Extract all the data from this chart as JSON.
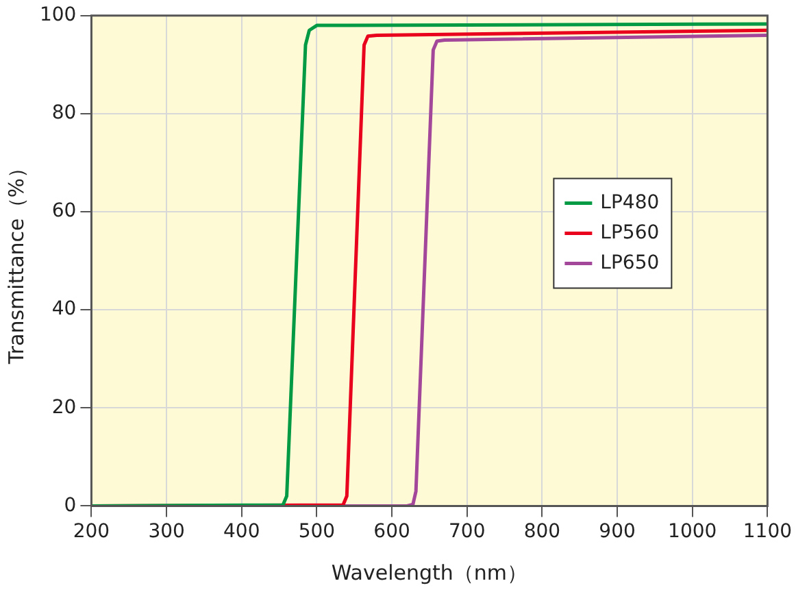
{
  "chart_data": {
    "type": "line",
    "xlabel": "Wavelength（nm）",
    "ylabel": "Transmittance（%）",
    "xlim": [
      200,
      1100
    ],
    "xticks": [
      200,
      300,
      400,
      500,
      600,
      700,
      800,
      900,
      1000,
      1100
    ],
    "ylim": [
      0,
      100
    ],
    "yticks": [
      0,
      20,
      40,
      60,
      80,
      100
    ],
    "grid": true,
    "legend": "right",
    "marker": "none",
    "line_style": "solid",
    "series": [
      {
        "name": "LP480",
        "color": "#009a44",
        "x": [
          200,
          455,
          460,
          485,
          490,
          500,
          1100
        ],
        "values": [
          0,
          0.2,
          2,
          94,
          97,
          98,
          98.3
        ]
      },
      {
        "name": "LP560",
        "color": "#e8001c",
        "x": [
          200,
          535,
          540,
          563,
          568,
          580,
          1100
        ],
        "values": [
          0,
          0.2,
          2,
          94,
          95.8,
          96,
          97
        ]
      },
      {
        "name": "LP650",
        "color": "#a3479a",
        "x": [
          200,
          620,
          628,
          632,
          655,
          660,
          670,
          1100
        ],
        "values": [
          0,
          0,
          0.3,
          3,
          93,
          94.8,
          95,
          96
        ]
      }
    ]
  }
}
